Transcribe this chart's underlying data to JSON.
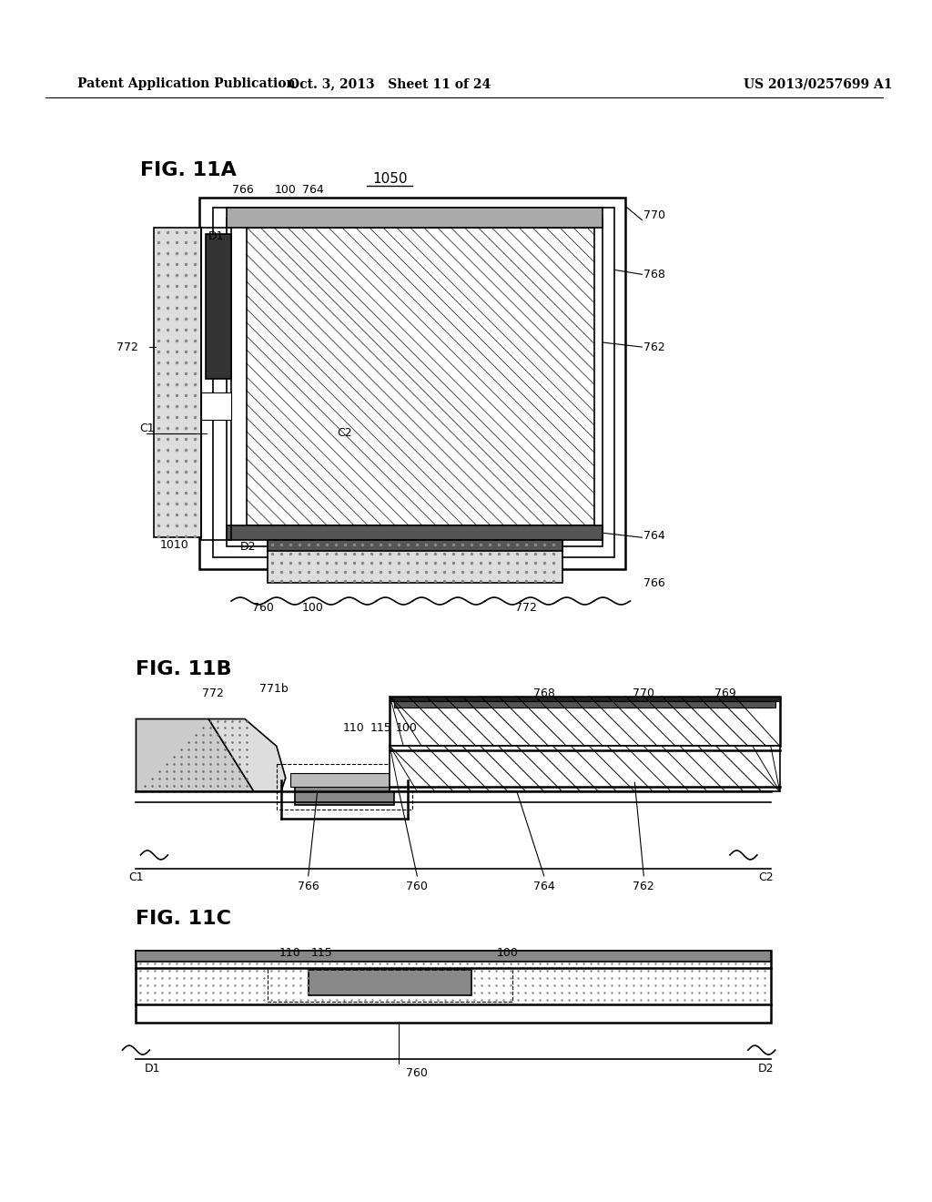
{
  "header_left": "Patent Application Publication",
  "header_mid": "Oct. 3, 2013   Sheet 11 of 24",
  "header_right": "US 2013/0257699 A1",
  "fig11a_label": "FIG. 11A",
  "fig11b_label": "FIG. 11B",
  "fig11c_label": "FIG. 11C",
  "label_1050": "1050",
  "bg_color": "#ffffff",
  "line_color": "#000000"
}
